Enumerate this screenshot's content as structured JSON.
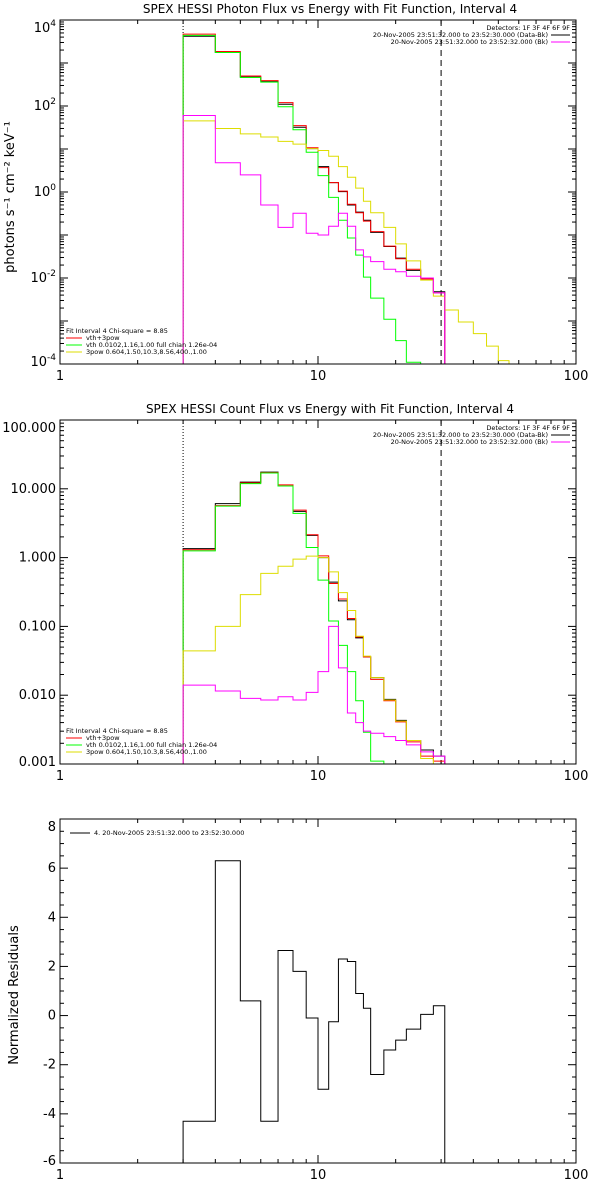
{
  "chart_data": [
    {
      "type": "line",
      "title": "SPEX HESSI Photon Flux vs Energy with Fit Function, Interval 4",
      "xlabel": "",
      "ylabel": "photons s⁻¹ cm⁻² keV⁻¹",
      "x_scale": "log",
      "y_scale": "log",
      "xlim": [
        1,
        100
      ],
      "ylim": [
        0.0001,
        10000
      ],
      "x_ticks": [
        {
          "v": 1,
          "label": "1"
        },
        {
          "v": 10,
          "label": "10"
        },
        {
          "v": 100,
          "label": "100"
        }
      ],
      "y_ticks": [
        {
          "v": 0.0001,
          "base": "10",
          "exp": "-4"
        },
        {
          "v": 0.01,
          "base": "10",
          "exp": "-2"
        },
        {
          "v": 1,
          "base": "10",
          "exp": "0"
        },
        {
          "v": 100,
          "base": "10",
          "exp": "2"
        },
        {
          "v": 10000,
          "base": "10",
          "exp": "4"
        }
      ],
      "edges": [
        3,
        4,
        5,
        6,
        7,
        8,
        9,
        10,
        11,
        12,
        13,
        14,
        15,
        16,
        18,
        20,
        22,
        25,
        28,
        31,
        35,
        40,
        45,
        50,
        55
      ],
      "series": [
        {
          "name": "data",
          "color": "#000000",
          "values": [
            4200,
            1750,
            470,
            380,
            110,
            32,
            10.2,
            3.9,
            1.65,
            1.02,
            0.5,
            0.34,
            0.22,
            0.115,
            0.054,
            0.029,
            0.015,
            0.0095,
            0.0048,
            null,
            null,
            null,
            null,
            null
          ]
        },
        {
          "name": "vth+3pow",
          "color": "#ff0000",
          "values": [
            4700,
            1850,
            500,
            390,
            120,
            35,
            10.7,
            3.7,
            1.65,
            1.05,
            0.52,
            0.33,
            0.21,
            0.12,
            0.055,
            0.028,
            0.016,
            0.0095,
            0.0045,
            null,
            null,
            null,
            null,
            null
          ]
        },
        {
          "name": "vth",
          "color": "#00ff00",
          "values": [
            4400,
            1750,
            460,
            360,
            96,
            28,
            8.4,
            2.4,
            0.75,
            0.22,
            0.085,
            0.034,
            0.0105,
            0.0034,
            0.0011,
            0.00035,
            0.00011,
            2e-05,
            null,
            null,
            null,
            null,
            null,
            null
          ]
        },
        {
          "name": "3pow",
          "color": "#dddd00",
          "values": [
            45,
            30,
            22.5,
            19,
            15,
            13,
            10.2,
            9.2,
            6.8,
            3.9,
            2.2,
            1.23,
            0.61,
            0.33,
            0.15,
            0.062,
            0.025,
            0.0089,
            0.0038,
            0.0018,
            0.00095,
            0.00051,
            0.00026,
            0.00012
          ]
        },
        {
          "name": "bk",
          "color": "#ff00ff",
          "values": [
            60,
            4.8,
            2.5,
            0.5,
            0.15,
            0.32,
            0.11,
            0.1,
            0.16,
            0.32,
            0.16,
            0.045,
            0.031,
            0.024,
            0.016,
            0.014,
            0.011,
            0.01,
            0.0045,
            null,
            null,
            null,
            null,
            null
          ]
        }
      ],
      "vlines": [
        {
          "x": 3,
          "style": "dotted",
          "color": "#000000"
        },
        {
          "x": 30,
          "style": "dashed",
          "color": "#000000"
        }
      ],
      "legend_right": {
        "detectors": "Detectors: 1F 3F 4F 6F 9F",
        "entries": [
          {
            "text": "20-Nov-2005 23:51:32.000 to 23:52:30.000 (Data-Bk)",
            "color": "#000000"
          },
          {
            "text": "20-Nov-2005 23:51:32.000 to 23:52:32.000 (Bk)",
            "color": "#ff00ff"
          }
        ]
      },
      "legend_left": {
        "header": "Fit Interval  4    Chi-square = 8.85",
        "entries": [
          {
            "text": "vth+3pow",
            "color": "#ff0000"
          },
          {
            "text": "vth 0.0102,1.16,1.00  full chian 1.26e-04",
            "color": "#00ff00"
          },
          {
            "text": "3pow 0.604,1.50,10.3,8.56,400.,1.00",
            "color": "#dddd00"
          }
        ]
      }
    },
    {
      "type": "line",
      "title": "SPEX HESSI Count Flux vs Energy with Fit Function, Interval 4",
      "xlabel": "",
      "ylabel": "",
      "x_scale": "log",
      "y_scale": "log",
      "xlim": [
        1,
        100
      ],
      "ylim": [
        0.001,
        100
      ],
      "x_ticks": [
        {
          "v": 1,
          "label": "1"
        },
        {
          "v": 10,
          "label": "10"
        },
        {
          "v": 100,
          "label": "100"
        }
      ],
      "y_ticks": [
        {
          "v": 0.001,
          "label": "0.001"
        },
        {
          "v": 0.01,
          "label": "0.010"
        },
        {
          "v": 0.1,
          "label": "0.100"
        },
        {
          "v": 1,
          "label": "1.000"
        },
        {
          "v": 10,
          "label": "10.000"
        },
        {
          "v": 100,
          "label": "100.000"
        }
      ],
      "edges": [
        3,
        4,
        5,
        6,
        7,
        8,
        9,
        10,
        11,
        12,
        13,
        14,
        15,
        16,
        18,
        20,
        22,
        25,
        28,
        31
      ],
      "series": [
        {
          "name": "data",
          "color": "#000000",
          "values": [
            1.35,
            6.1,
            12.5,
            17.5,
            11,
            4.7,
            2.1,
            1.0,
            0.44,
            0.235,
            0.125,
            0.068,
            0.036,
            0.018,
            0.0087,
            0.0043,
            0.0022,
            0.0016,
            0.0013
          ]
        },
        {
          "name": "vth+3pow",
          "color": "#ff0000",
          "values": [
            1.3,
            5.7,
            12.2,
            17.2,
            11.4,
            4.9,
            2.15,
            1.06,
            0.42,
            0.25,
            0.13,
            0.07,
            0.036,
            0.017,
            0.0083,
            0.0041,
            0.0021,
            0.0013,
            0.0011
          ]
        },
        {
          "name": "vth",
          "color": "#00ff00",
          "values": [
            1.25,
            5.6,
            11.9,
            17.0,
            11,
            4.4,
            1.4,
            0.47,
            0.12,
            0.053,
            0.022,
            0.0083,
            0.0029,
            0.0011,
            0.0004,
            null,
            null,
            null,
            null
          ]
        },
        {
          "name": "3pow",
          "color": "#dddd00",
          "values": [
            0.044,
            0.1,
            0.29,
            0.59,
            0.75,
            0.95,
            1.05,
            1.0,
            0.62,
            0.31,
            0.17,
            0.072,
            0.037,
            0.018,
            0.0085,
            0.0042,
            0.0022,
            0.0012,
            0.0007
          ]
        },
        {
          "name": "bk",
          "color": "#ff00ff",
          "values": [
            0.014,
            0.0115,
            0.009,
            0.0085,
            0.0095,
            0.0085,
            0.011,
            0.022,
            0.1,
            0.025,
            0.0055,
            0.004,
            0.003,
            0.0028,
            0.0025,
            0.0022,
            0.0019,
            0.0015,
            0.0013
          ]
        }
      ],
      "vlines": [
        {
          "x": 3,
          "style": "dotted",
          "color": "#000000"
        },
        {
          "x": 30,
          "style": "dashed",
          "color": "#000000"
        }
      ],
      "legend_right": {
        "detectors": "Detectors: 1F 3F 4F 6F 9F",
        "entries": [
          {
            "text": "20-Nov-2005 23:51:32.000 to 23:52:30.000 (Data-Bk)",
            "color": "#000000"
          },
          {
            "text": "20-Nov-2005 23:51:32.000 to 23:52:32.000 (Bk)",
            "color": "#ff00ff"
          }
        ]
      },
      "legend_left": {
        "header": "Fit Interval  4    Chi-square = 8.85",
        "entries": [
          {
            "text": "vth+3pow",
            "color": "#ff0000"
          },
          {
            "text": "vth 0.0102,1.16,1.00  full chian 1.26e-04",
            "color": "#00ff00"
          },
          {
            "text": "3pow 0.604,1.50,10.3,8.56,400.,1.00",
            "color": "#dddd00"
          }
        ]
      }
    },
    {
      "type": "line",
      "title": "",
      "xlabel": "",
      "ylabel": "Normalized Residuals",
      "x_scale": "log",
      "y_scale": "linear",
      "xlim": [
        1,
        100
      ],
      "ylim": [
        -6,
        8
      ],
      "x_ticks": [
        {
          "v": 1,
          "label": "1"
        },
        {
          "v": 10,
          "label": "10"
        },
        {
          "v": 100,
          "label": "100"
        }
      ],
      "y_ticks": [
        {
          "v": -6,
          "label": "-6"
        },
        {
          "v": -4,
          "label": "-4"
        },
        {
          "v": -2,
          "label": "-2"
        },
        {
          "v": 0,
          "label": "0"
        },
        {
          "v": 2,
          "label": "2"
        },
        {
          "v": 4,
          "label": "4"
        },
        {
          "v": 6,
          "label": "6"
        },
        {
          "v": 8,
          "label": "8"
        }
      ],
      "edges": [
        3,
        4,
        5,
        6,
        7,
        8,
        9,
        10,
        11,
        12,
        13,
        14,
        15,
        16,
        18,
        20,
        22,
        25,
        28,
        31
      ],
      "series": [
        {
          "name": "4. 20-Nov-2005 23:51:32.000 to 23:52:30.000",
          "color": "#000000",
          "values": [
            -4.3,
            6.3,
            0.6,
            -4.3,
            2.65,
            1.8,
            -0.1,
            -3.0,
            -0.25,
            2.3,
            2.2,
            0.9,
            0.3,
            -2.4,
            -1.4,
            -1.0,
            -0.55,
            0.05,
            0.4
          ]
        }
      ],
      "legend_left": {
        "header": "",
        "entries": [
          {
            "text": "4. 20-Nov-2005 23:51:32.000 to 23:52:30.000",
            "color": "#000000"
          }
        ]
      }
    }
  ]
}
